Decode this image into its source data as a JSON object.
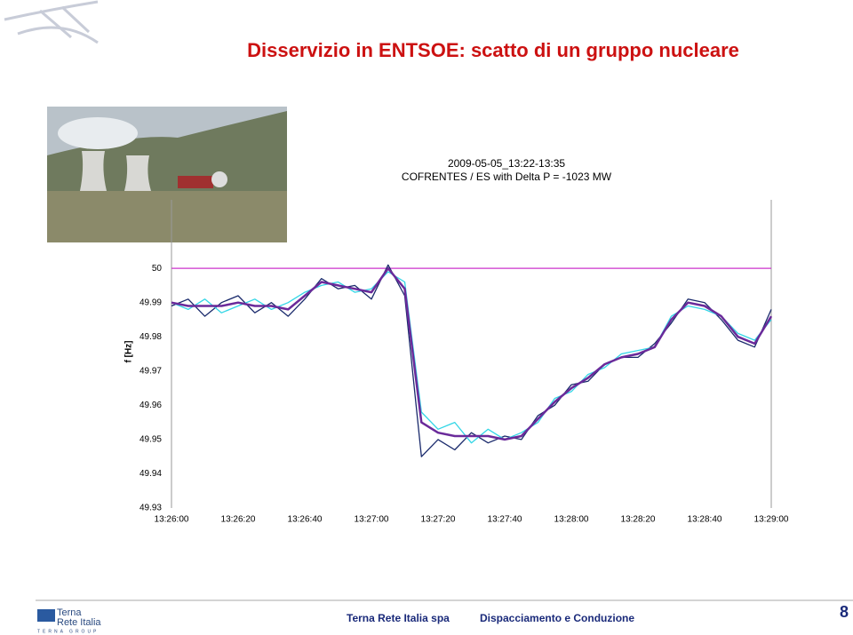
{
  "header": {
    "title": "Disservizio in ENTSOE: scatto di un gruppo nucleare"
  },
  "chart_data": {
    "type": "line",
    "title": "2009-05-05_13:22-13:35",
    "subtitle": "COFRENTES / ES with Delta P = -1023 MW",
    "ylabel": "f [Hz]",
    "x": [
      "13:26:00",
      "13:26:05",
      "13:26:10",
      "13:26:15",
      "13:26:20",
      "13:26:25",
      "13:26:30",
      "13:26:35",
      "13:26:40",
      "13:26:45",
      "13:26:50",
      "13:26:55",
      "13:27:00",
      "13:27:05",
      "13:27:10",
      "13:27:15",
      "13:27:20",
      "13:27:25",
      "13:27:30",
      "13:27:35",
      "13:27:40",
      "13:27:45",
      "13:27:50",
      "13:27:55",
      "13:28:00",
      "13:28:05",
      "13:28:10",
      "13:28:15",
      "13:28:20",
      "13:28:25",
      "13:28:30",
      "13:28:35",
      "13:28:40",
      "13:28:45",
      "13:28:50",
      "13:28:55",
      "13:29:00"
    ],
    "series": [
      {
        "color": "#1a2a6c",
        "values": [
          49.989,
          49.991,
          49.986,
          49.99,
          49.992,
          49.987,
          49.99,
          49.986,
          49.991,
          49.997,
          49.994,
          49.995,
          49.991,
          50.001,
          49.992,
          49.945,
          49.95,
          49.947,
          49.952,
          49.949,
          49.951,
          49.95,
          49.957,
          49.96,
          49.966,
          49.967,
          49.972,
          49.974,
          49.974,
          49.978,
          49.984,
          49.991,
          49.99,
          49.985,
          49.979,
          49.977,
          49.988
        ]
      },
      {
        "color": "#33d6e6",
        "values": [
          49.99,
          49.988,
          49.991,
          49.987,
          49.989,
          49.991,
          49.988,
          49.99,
          49.993,
          49.995,
          49.996,
          49.993,
          49.994,
          49.999,
          49.996,
          49.958,
          49.953,
          49.955,
          49.949,
          49.953,
          49.95,
          49.952,
          49.955,
          49.962,
          49.964,
          49.969,
          49.971,
          49.975,
          49.976,
          49.977,
          49.986,
          49.989,
          49.988,
          49.986,
          49.981,
          49.979,
          49.985
        ]
      },
      {
        "color": "#6a2a9a",
        "values": [
          49.99,
          49.989,
          49.989,
          49.989,
          49.99,
          49.989,
          49.989,
          49.988,
          49.992,
          49.996,
          49.995,
          49.994,
          49.993,
          50.0,
          49.994,
          49.955,
          49.952,
          49.951,
          49.951,
          49.951,
          49.95,
          49.951,
          49.956,
          49.961,
          49.965,
          49.968,
          49.972,
          49.974,
          49.975,
          49.977,
          49.985,
          49.99,
          49.989,
          49.986,
          49.98,
          49.978,
          49.986
        ]
      }
    ],
    "reference_line": {
      "value": 50,
      "color": "#cc33cc"
    },
    "xlim": [
      "13:26:00",
      "13:29:00"
    ],
    "xticks": [
      "13:26:00",
      "13:26:20",
      "13:26:40",
      "13:27:00",
      "13:27:20",
      "13:27:40",
      "13:28:00",
      "13:28:20",
      "13:28:40",
      "13:29:00"
    ],
    "ylim": [
      49.93,
      50.02
    ],
    "yticks": [
      49.93,
      49.94,
      49.95,
      49.96,
      49.97,
      49.98,
      49.99,
      50
    ],
    "grid": false
  },
  "footer": {
    "logo_line1": "Terna",
    "logo_line2": "Rete Italia",
    "logo_line3": "TERNA GROUP",
    "company": "Terna Rete Italia spa",
    "department": "Dispacciamento e Conduzione",
    "page_number": "8"
  }
}
